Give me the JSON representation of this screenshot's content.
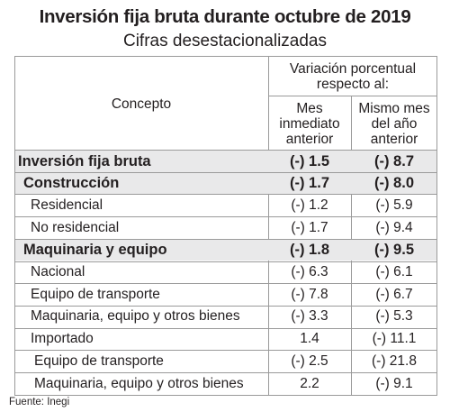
{
  "title": "Inversión fija bruta durante octubre de 2019",
  "subtitle": "Cifras desestacionalizadas",
  "header": {
    "concept": "Concepto",
    "variation_line1": "Variación porcentual",
    "variation_line2": "respecto al:",
    "col1_line1": "Mes",
    "col1_line2": "inmediato",
    "col1_line3": "anterior",
    "col2_line1": "Mismo mes",
    "col2_line2": "del año",
    "col2_line3": "anterior"
  },
  "rows": [
    {
      "label": "Inversión fija bruta",
      "v1": "(-) 1.5",
      "v2": "(-) 8.7",
      "bold": true,
      "level": 0
    },
    {
      "label": "Construcción",
      "v1": "(-) 1.7",
      "v2": "(-) 8.0",
      "bold": true,
      "level": 1
    },
    {
      "label": "Residencial",
      "v1": "(-) 1.2",
      "v2": "(-) 5.9",
      "bold": false,
      "level": 2
    },
    {
      "label": "No residencial",
      "v1": "(-) 1.7",
      "v2": "(-) 9.4",
      "bold": false,
      "level": 2
    },
    {
      "label": "Maquinaria y equipo",
      "v1": "(-) 1.8",
      "v2": "(-) 9.5",
      "bold": true,
      "level": 1
    },
    {
      "label": "Nacional",
      "v1": "(-) 6.3",
      "v2": "(-) 6.1",
      "bold": false,
      "level": 2
    },
    {
      "label": "Equipo de transporte",
      "v1": "(-) 7.8",
      "v2": "(-) 6.7",
      "bold": false,
      "level": 3
    },
    {
      "label": "Maquinaria, equipo y otros bienes",
      "v1": "(-) 3.3",
      "v2": "(-) 5.3",
      "bold": false,
      "level": 3
    },
    {
      "label": "Importado",
      "v1": "1.4",
      "v2": "(-) 11.1",
      "bold": false,
      "level": 2
    },
    {
      "label": "Equipo de transporte",
      "v1": "(-) 2.5",
      "v2": "(-) 21.8",
      "bold": false,
      "level": 4
    },
    {
      "label": "Maquinaria, equipo y otros bienes",
      "v1": "2.2",
      "v2": "(-) 9.1",
      "bold": false,
      "level": 4
    }
  ],
  "footer": "Fuente: Inegi"
}
